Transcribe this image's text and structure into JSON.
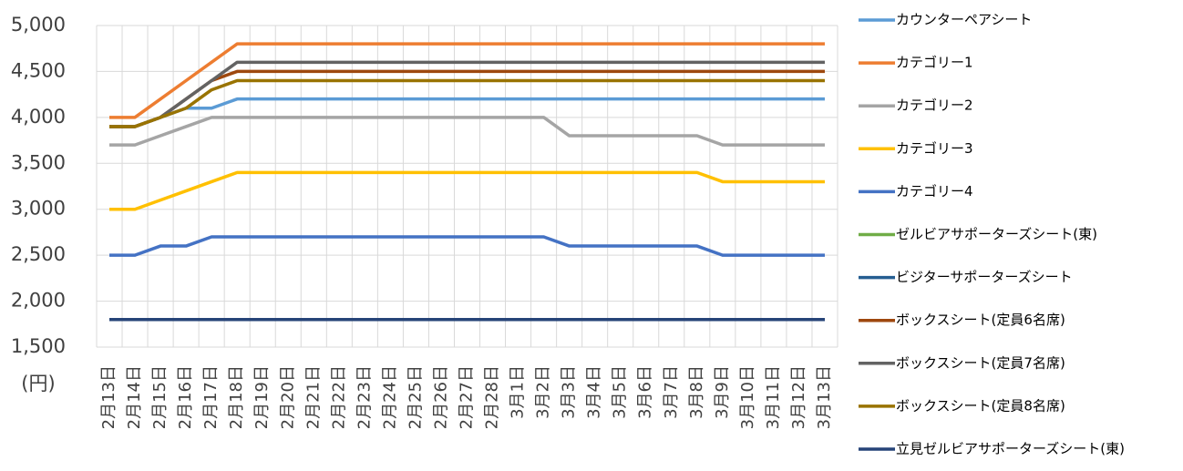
{
  "chart_data": {
    "type": "line",
    "categories": [
      "2月13日",
      "2月14日",
      "2月15日",
      "2月16日",
      "2月17日",
      "2月18日",
      "2月19日",
      "2月20日",
      "2月21日",
      "2月22日",
      "2月23日",
      "2月24日",
      "2月25日",
      "2月26日",
      "2月27日",
      "2月28日",
      "3月1日",
      "3月2日",
      "3月3日",
      "3月4日",
      "3月5日",
      "3月6日",
      "3月7日",
      "3月8日",
      "3月9日",
      "3月10日",
      "3月11日",
      "3月12日",
      "3月13日"
    ],
    "y_axis_label": "(円)",
    "ylim": [
      1500,
      5000
    ],
    "yticks": [
      {
        "value": 1500,
        "label": "1,500"
      },
      {
        "value": 2000,
        "label": "2,000"
      },
      {
        "value": 2500,
        "label": "2,500"
      },
      {
        "value": 3000,
        "label": "3,000"
      },
      {
        "value": 3500,
        "label": "3,500"
      },
      {
        "value": 4000,
        "label": "4,000"
      },
      {
        "value": 4500,
        "label": "4,500"
      },
      {
        "value": 5000,
        "label": "5,000"
      }
    ],
    "grid": true,
    "legend": "right",
    "series": [
      {
        "name": "カウンターペアシート",
        "color": "#5b9bd5",
        "values": [
          3900,
          3900,
          4000,
          4100,
          4100,
          4200,
          4200,
          4200,
          4200,
          4200,
          4200,
          4200,
          4200,
          4200,
          4200,
          4200,
          4200,
          4200,
          4200,
          4200,
          4200,
          4200,
          4200,
          4200,
          4200,
          4200,
          4200,
          4200,
          4200
        ]
      },
      {
        "name": "カテゴリー1",
        "color": "#ed7d31",
        "values": [
          4000,
          4000,
          4200,
          4400,
          4600,
          4800,
          4800,
          4800,
          4800,
          4800,
          4800,
          4800,
          4800,
          4800,
          4800,
          4800,
          4800,
          4800,
          4800,
          4800,
          4800,
          4800,
          4800,
          4800,
          4800,
          4800,
          4800,
          4800,
          4800
        ]
      },
      {
        "name": "カテゴリー2",
        "color": "#a5a5a5",
        "values": [
          3700,
          3700,
          3800,
          3900,
          4000,
          4000,
          4000,
          4000,
          4000,
          4000,
          4000,
          4000,
          4000,
          4000,
          4000,
          4000,
          4000,
          4000,
          3800,
          3800,
          3800,
          3800,
          3800,
          3800,
          3700,
          3700,
          3700,
          3700,
          3700
        ]
      },
      {
        "name": "カテゴリー3",
        "color": "#ffc000",
        "values": [
          3000,
          3000,
          3100,
          3200,
          3300,
          3400,
          3400,
          3400,
          3400,
          3400,
          3400,
          3400,
          3400,
          3400,
          3400,
          3400,
          3400,
          3400,
          3400,
          3400,
          3400,
          3400,
          3400,
          3400,
          3300,
          3300,
          3300,
          3300,
          3300
        ]
      },
      {
        "name": "カテゴリー4",
        "color": "#4472c4",
        "values": [
          2500,
          2500,
          2600,
          2600,
          2700,
          2700,
          2700,
          2700,
          2700,
          2700,
          2700,
          2700,
          2700,
          2700,
          2700,
          2700,
          2700,
          2700,
          2600,
          2600,
          2600,
          2600,
          2600,
          2600,
          2500,
          2500,
          2500,
          2500,
          2500
        ]
      },
      {
        "name": "ゼルビアサポーターズシート(東)",
        "color": "#70ad47",
        "values": [
          1800,
          1800,
          1800,
          1800,
          1800,
          1800,
          1800,
          1800,
          1800,
          1800,
          1800,
          1800,
          1800,
          1800,
          1800,
          1800,
          1800,
          1800,
          1800,
          1800,
          1800,
          1800,
          1800,
          1800,
          1800,
          1800,
          1800,
          1800,
          1800
        ]
      },
      {
        "name": "ビジターサポーターズシート",
        "color": "#255e91",
        "values": [
          1800,
          1800,
          1800,
          1800,
          1800,
          1800,
          1800,
          1800,
          1800,
          1800,
          1800,
          1800,
          1800,
          1800,
          1800,
          1800,
          1800,
          1800,
          1800,
          1800,
          1800,
          1800,
          1800,
          1800,
          1800,
          1800,
          1800,
          1800,
          1800
        ]
      },
      {
        "name": "ボックスシート(定員6名席)",
        "color": "#9e480e",
        "values": [
          3900,
          3900,
          4000,
          4200,
          4400,
          4500,
          4500,
          4500,
          4500,
          4500,
          4500,
          4500,
          4500,
          4500,
          4500,
          4500,
          4500,
          4500,
          4500,
          4500,
          4500,
          4500,
          4500,
          4500,
          4500,
          4500,
          4500,
          4500,
          4500
        ]
      },
      {
        "name": "ボックスシート(定員7名席)",
        "color": "#636363",
        "values": [
          3900,
          3900,
          4000,
          4200,
          4400,
          4600,
          4600,
          4600,
          4600,
          4600,
          4600,
          4600,
          4600,
          4600,
          4600,
          4600,
          4600,
          4600,
          4600,
          4600,
          4600,
          4600,
          4600,
          4600,
          4600,
          4600,
          4600,
          4600,
          4600
        ]
      },
      {
        "name": "ボックスシート(定員8名席)",
        "color": "#997300",
        "values": [
          3900,
          3900,
          4000,
          4100,
          4300,
          4400,
          4400,
          4400,
          4400,
          4400,
          4400,
          4400,
          4400,
          4400,
          4400,
          4400,
          4400,
          4400,
          4400,
          4400,
          4400,
          4400,
          4400,
          4400,
          4400,
          4400,
          4400,
          4400,
          4400
        ]
      },
      {
        "name": "立見ゼルビアサポーターズシート(東)",
        "color": "#264478",
        "values": [
          1800,
          1800,
          1800,
          1800,
          1800,
          1800,
          1800,
          1800,
          1800,
          1800,
          1800,
          1800,
          1800,
          1800,
          1800,
          1800,
          1800,
          1800,
          1800,
          1800,
          1800,
          1800,
          1800,
          1800,
          1800,
          1800,
          1800,
          1800,
          1800
        ]
      }
    ]
  }
}
